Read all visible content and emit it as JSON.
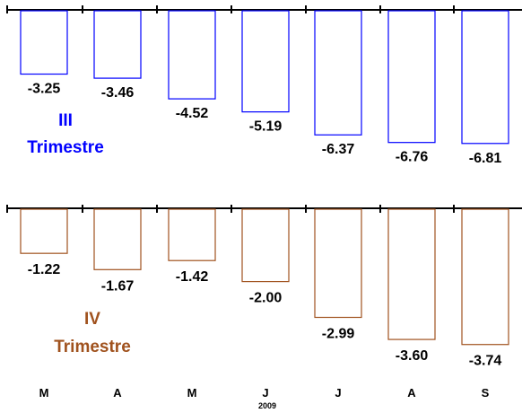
{
  "chart_data": [
    {
      "type": "bar",
      "title": "III Trimestre",
      "title_lines": [
        "III",
        "Trimestre"
      ],
      "categories": [
        "M",
        "A",
        "M",
        "J",
        "J",
        "A",
        "S"
      ],
      "year_label": "2009",
      "values": [
        -3.25,
        -3.46,
        -4.52,
        -5.19,
        -6.37,
        -6.76,
        -6.81
      ],
      "value_labels": [
        "-3.25",
        "-3.46",
        "-4.52",
        "-5.19",
        "-6.37",
        "-6.76",
        "-6.81"
      ],
      "color": "#0000ff",
      "ylim": [
        -7,
        0
      ],
      "grid": false,
      "bar_fill": "none"
    },
    {
      "type": "bar",
      "title": "IV Trimestre",
      "title_lines": [
        "IV",
        "Trimestre"
      ],
      "categories": [
        "M",
        "A",
        "M",
        "J",
        "J",
        "A",
        "S"
      ],
      "year_label": "2009",
      "values": [
        -1.22,
        -1.67,
        -1.42,
        -2.0,
        -2.99,
        -3.6,
        -3.74
      ],
      "value_labels": [
        "-1.22",
        "-1.67",
        "-1.42",
        "-2.00",
        "-2.99",
        "-3.60",
        "-3.74"
      ],
      "color": "#a0521e",
      "ylim": [
        -4.1,
        0
      ],
      "grid": false,
      "bar_fill": "none"
    }
  ]
}
